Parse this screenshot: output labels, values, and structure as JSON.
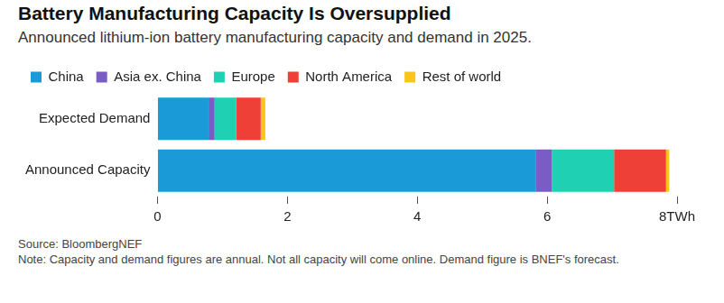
{
  "chart_data": {
    "type": "bar",
    "title": "Battery Manufacturing Capacity Is Oversupplied",
    "subtitle": "Announced lithium-ion battery manufacturing capacity and demand in 2025.",
    "orientation": "horizontal",
    "stacked": true,
    "grid": false,
    "legend": "top-left",
    "categories": [
      "Expected Demand",
      "Announced Capacity"
    ],
    "series": [
      {
        "name": "China",
        "color": "#1a9bd7",
        "values": [
          0.8,
          5.83
        ]
      },
      {
        "name": "Asia ex. China",
        "color": "#7a5cc6",
        "values": [
          0.08,
          0.24
        ]
      },
      {
        "name": "Europe",
        "color": "#1fd1b2",
        "values": [
          0.33,
          0.96
        ]
      },
      {
        "name": "North America",
        "color": "#ee4036",
        "values": [
          0.38,
          0.8
        ]
      },
      {
        "name": "Rest of world",
        "color": "#f7c51c",
        "values": [
          0.07,
          0.05
        ]
      }
    ],
    "xlim": [
      0,
      8
    ],
    "xticks": [
      0,
      2,
      4,
      6,
      {
        "value": 8,
        "label": "8TWh"
      }
    ],
    "source": "Source: BloombergNEF",
    "note": "Note: Capacity and demand figures are annual. Not all capacity will come online. Demand figure is BNEF's forecast."
  }
}
